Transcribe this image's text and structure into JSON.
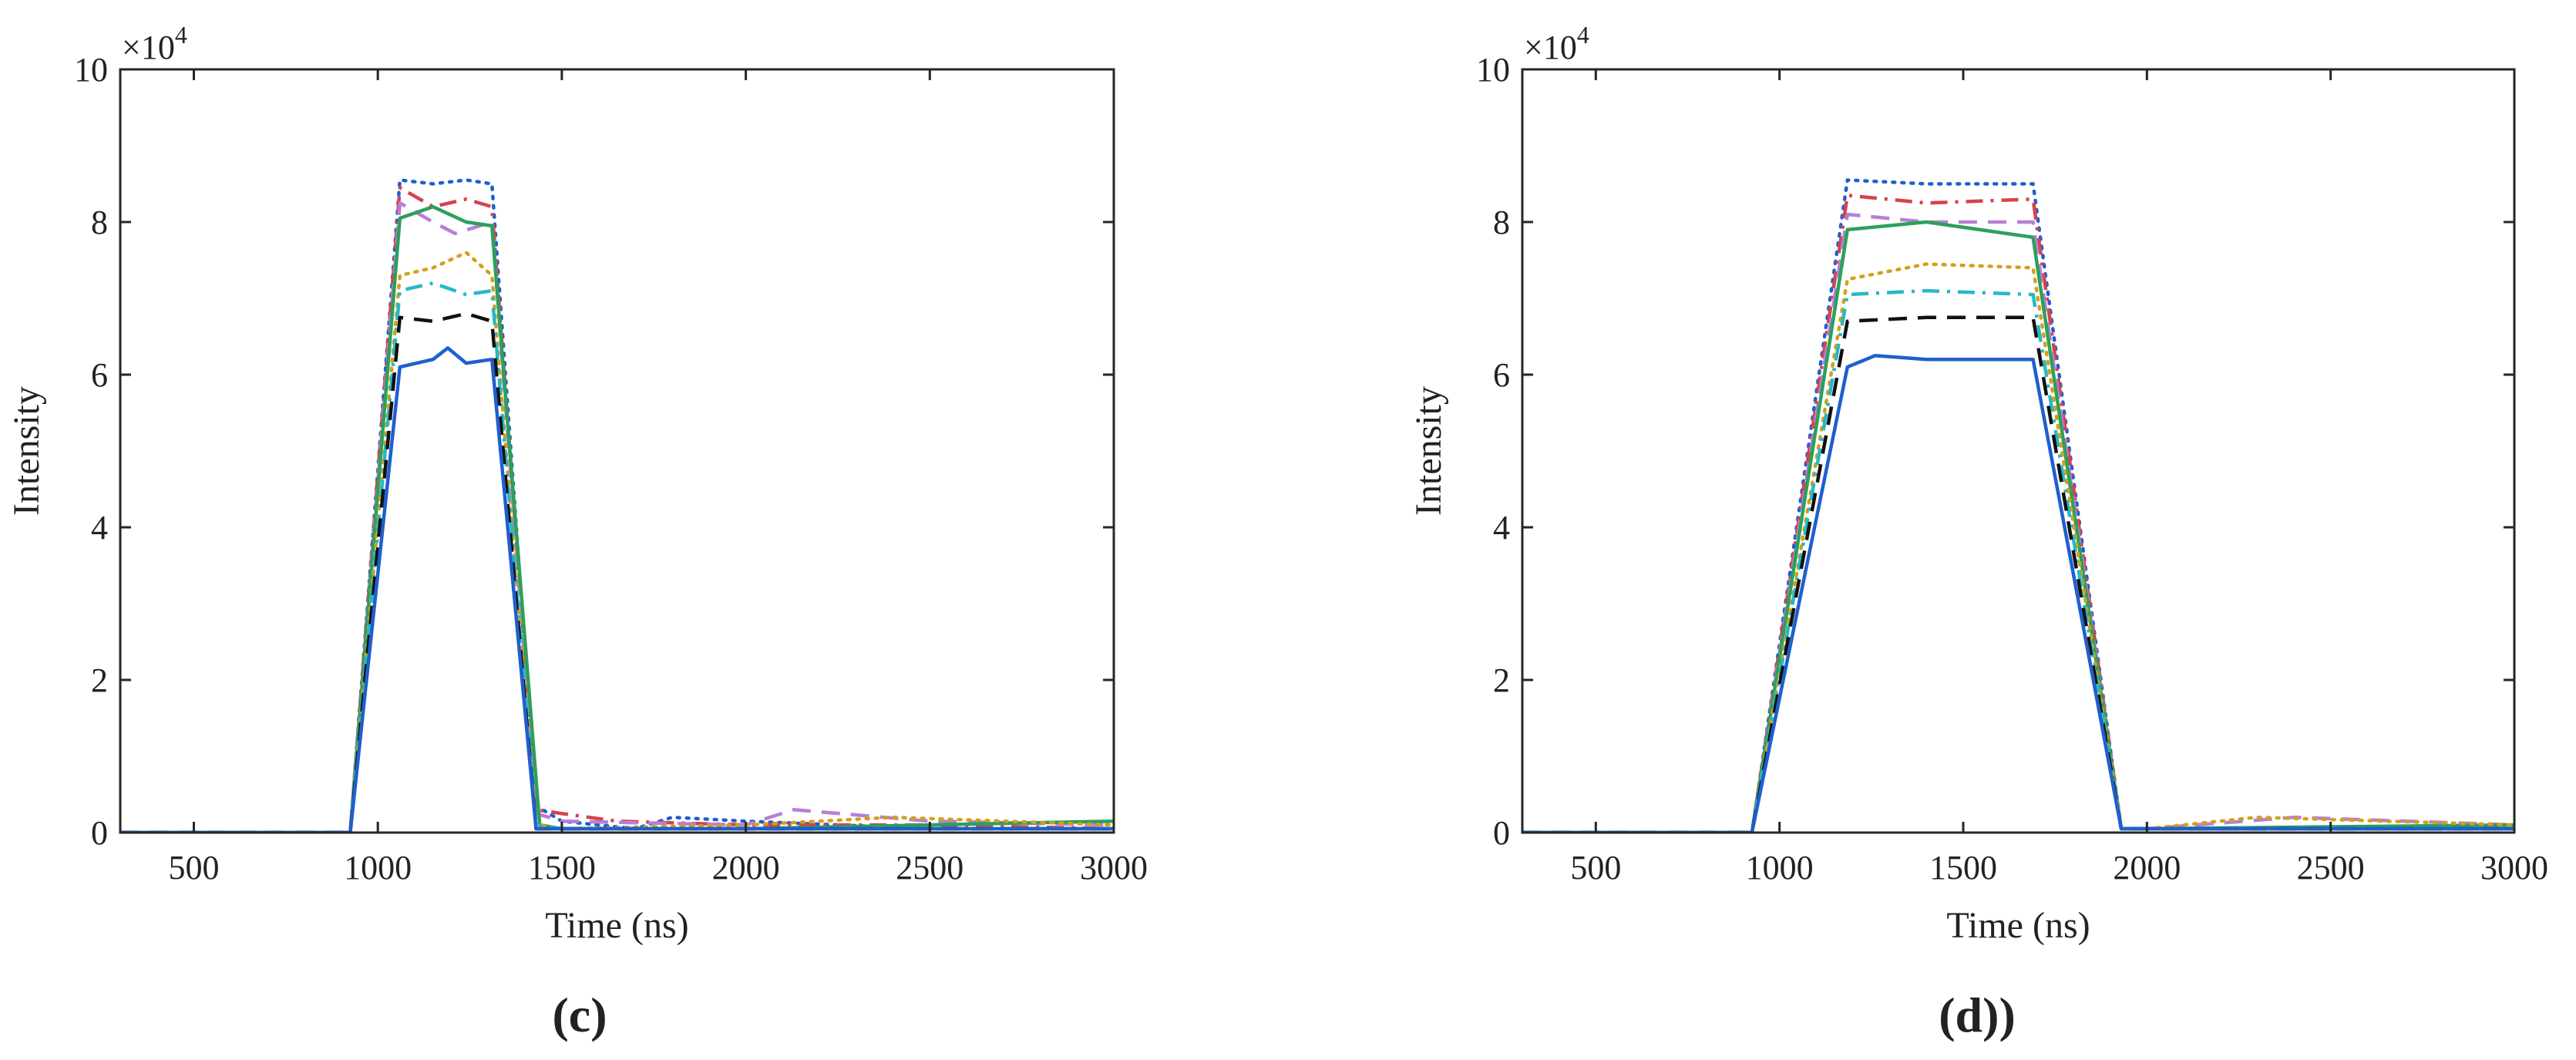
{
  "figure": {
    "panels": [
      {
        "caption": "(c)"
      },
      {
        "caption": "(d))"
      }
    ]
  },
  "chart_data": [
    {
      "type": "line",
      "panel_label": "(c)",
      "title": "",
      "xlabel": "Time (ns)",
      "ylabel": "Intensity",
      "y_multiplier": "×10",
      "y_multiplier_exp": "4",
      "xlim": [
        300,
        3000
      ],
      "ylim": [
        0,
        10
      ],
      "xticks": [
        500,
        1000,
        1500,
        2000,
        2500,
        3000
      ],
      "yticks": [
        0,
        2,
        4,
        6,
        8,
        10
      ],
      "grid": false,
      "series": [
        {
          "color": "#1f5fcf",
          "style": "dotted",
          "x": [
            300,
            925,
            1060,
            1150,
            1240,
            1310,
            1430,
            1500,
            1700,
            1800,
            2000,
            2500,
            3000
          ],
          "y": [
            0,
            0,
            8.55,
            8.5,
            8.55,
            8.5,
            0.35,
            0.15,
            0.05,
            0.2,
            0.15,
            0.05,
            0.05
          ]
        },
        {
          "color": "#d6434b",
          "style": "dashdot",
          "x": [
            300,
            925,
            1060,
            1150,
            1240,
            1310,
            1430,
            1500,
            1650,
            2000,
            2500,
            3000
          ],
          "y": [
            0,
            0,
            8.45,
            8.2,
            8.3,
            8.2,
            0.3,
            0.25,
            0.15,
            0.1,
            0.1,
            0.05
          ]
        },
        {
          "color": "#b77fd6",
          "style": "dashed",
          "x": [
            300,
            925,
            1060,
            1150,
            1210,
            1310,
            1430,
            1500,
            2000,
            2130,
            2500,
            3000
          ],
          "y": [
            0,
            0,
            8.25,
            8.0,
            7.85,
            8.0,
            0.25,
            0.15,
            0.1,
            0.3,
            0.15,
            0.1
          ]
        },
        {
          "color": "#2ca05a",
          "style": "solid",
          "x": [
            300,
            925,
            1060,
            1150,
            1240,
            1310,
            1440,
            1500,
            2000,
            2500,
            3000
          ],
          "y": [
            0,
            0,
            8.05,
            8.2,
            8.0,
            7.95,
            0.1,
            0.05,
            0.05,
            0.1,
            0.15
          ]
        },
        {
          "color": "#d4a017",
          "style": "dotted",
          "x": [
            300,
            925,
            1060,
            1150,
            1240,
            1310,
            1430,
            1500,
            2000,
            2400,
            3000
          ],
          "y": [
            0,
            0,
            7.3,
            7.4,
            7.6,
            7.3,
            0.1,
            0.05,
            0.1,
            0.2,
            0.1
          ]
        },
        {
          "color": "#27b8c7",
          "style": "dashdot",
          "x": [
            300,
            925,
            1060,
            1150,
            1240,
            1310,
            1430,
            1500,
            2000,
            2500,
            3000
          ],
          "y": [
            0,
            0,
            7.1,
            7.2,
            7.05,
            7.1,
            0.1,
            0.05,
            0.05,
            0.05,
            0.05
          ]
        },
        {
          "color": "#111111",
          "style": "dashed",
          "x": [
            300,
            925,
            1060,
            1150,
            1240,
            1310,
            1430,
            1500,
            2000,
            2500,
            3000
          ],
          "y": [
            0,
            0,
            6.75,
            6.7,
            6.8,
            6.7,
            0.05,
            0.05,
            0.05,
            0.05,
            0.05
          ]
        },
        {
          "color": "#1f5fcf",
          "style": "solid",
          "x": [
            300,
            925,
            1060,
            1150,
            1190,
            1240,
            1310,
            1430,
            1500,
            2000,
            2500,
            3000
          ],
          "y": [
            0,
            0,
            6.1,
            6.2,
            6.35,
            6.15,
            6.2,
            0.05,
            0.05,
            0.05,
            0.05,
            0.05
          ]
        }
      ]
    },
    {
      "type": "line",
      "panel_label": "(d))",
      "title": "",
      "xlabel": "Time (ns)",
      "ylabel": "Intensity",
      "y_multiplier": "×10",
      "y_multiplier_exp": "4",
      "xlim": [
        300,
        3000
      ],
      "ylim": [
        0,
        10
      ],
      "xticks": [
        500,
        1000,
        1500,
        2000,
        2500,
        3000
      ],
      "yticks": [
        0,
        2,
        4,
        6,
        8,
        10
      ],
      "grid": false,
      "series": [
        {
          "color": "#1f5fcf",
          "style": "dotted",
          "x": [
            300,
            925,
            1185,
            1400,
            1690,
            1930,
            2000,
            3000
          ],
          "y": [
            0,
            0,
            8.55,
            8.5,
            8.5,
            0.05,
            0.05,
            0.05
          ]
        },
        {
          "color": "#d6434b",
          "style": "dashdot",
          "x": [
            300,
            925,
            1185,
            1400,
            1690,
            1930,
            2000,
            3000
          ],
          "y": [
            0,
            0,
            8.35,
            8.25,
            8.3,
            0.05,
            0.05,
            0.05
          ]
        },
        {
          "color": "#b77fd6",
          "style": "dashed",
          "x": [
            300,
            925,
            1185,
            1400,
            1690,
            1930,
            2000,
            2400,
            3000
          ],
          "y": [
            0,
            0,
            8.1,
            8.0,
            8.0,
            0.05,
            0.05,
            0.2,
            0.1
          ]
        },
        {
          "color": "#2ca05a",
          "style": "solid",
          "x": [
            300,
            925,
            1185,
            1400,
            1690,
            1930,
            2000,
            3000
          ],
          "y": [
            0,
            0,
            7.9,
            8.0,
            7.8,
            0.05,
            0.05,
            0.1
          ]
        },
        {
          "color": "#d4a017",
          "style": "dotted",
          "x": [
            300,
            925,
            1185,
            1400,
            1690,
            1930,
            2000,
            2300,
            3000
          ],
          "y": [
            0,
            0,
            7.25,
            7.45,
            7.4,
            0.05,
            0.05,
            0.2,
            0.1
          ]
        },
        {
          "color": "#27b8c7",
          "style": "dashdot",
          "x": [
            300,
            925,
            1185,
            1400,
            1690,
            1930,
            2000,
            3000
          ],
          "y": [
            0,
            0,
            7.05,
            7.1,
            7.05,
            0.05,
            0.05,
            0.05
          ]
        },
        {
          "color": "#111111",
          "style": "dashed",
          "x": [
            300,
            925,
            1185,
            1400,
            1690,
            1930,
            2000,
            3000
          ],
          "y": [
            0,
            0,
            6.7,
            6.75,
            6.75,
            0.05,
            0.05,
            0.05
          ]
        },
        {
          "color": "#1f5fcf",
          "style": "solid",
          "x": [
            300,
            925,
            1185,
            1260,
            1400,
            1690,
            1930,
            2000,
            3000
          ],
          "y": [
            0,
            0,
            6.1,
            6.25,
            6.2,
            6.2,
            0.05,
            0.05,
            0.05
          ]
        }
      ]
    }
  ]
}
